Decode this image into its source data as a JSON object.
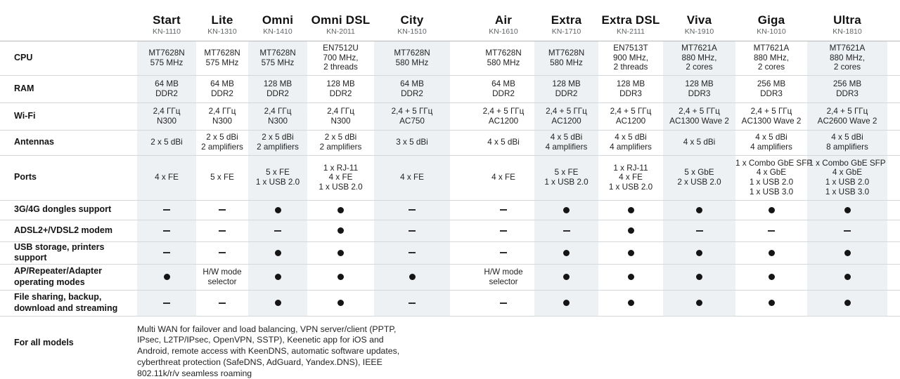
{
  "colors": {
    "stripe": "#eef1f3",
    "row_line": "#d5d8db",
    "header_line": "#b6babd",
    "text": "#1e1e1e"
  },
  "table": {
    "columns": [
      {
        "name": "Start",
        "model": "KN-1110"
      },
      {
        "name": "Lite",
        "model": "KN-1310"
      },
      {
        "name": "Omni",
        "model": "KN-1410"
      },
      {
        "name": "Omni DSL",
        "model": "KN-2011"
      },
      {
        "name": "City",
        "model": "KN-1510"
      },
      {
        "name": "Air",
        "model": "KN-1610"
      },
      {
        "name": "Extra",
        "model": "KN-1710"
      },
      {
        "name": "Extra DSL",
        "model": "KN-2111"
      },
      {
        "name": "Viva",
        "model": "KN-1910"
      },
      {
        "name": "Giga",
        "model": "KN-1010"
      },
      {
        "name": "Ultra",
        "model": "KN-1810"
      }
    ],
    "rows": [
      {
        "label": "CPU",
        "cells": [
          [
            "MT7628N",
            "575 MHz"
          ],
          [
            "MT7628N",
            "575 MHz"
          ],
          [
            "MT7628N",
            "575 MHz"
          ],
          [
            "EN7512U",
            "700 MHz,",
            "2 threads"
          ],
          [
            "MT7628N",
            "580 MHz"
          ],
          [
            "MT7628N",
            "580 MHz"
          ],
          [
            "MT7628N",
            "580 MHz"
          ],
          [
            "EN7513T",
            "900 MHz,",
            "2 threads"
          ],
          [
            "MT7621A",
            "880 MHz,",
            "2 cores"
          ],
          [
            "MT7621A",
            "880 MHz,",
            "2 cores"
          ],
          [
            "MT7621A",
            "880 MHz,",
            "2 cores"
          ]
        ]
      },
      {
        "label": "RAM",
        "cells": [
          [
            "64 MB",
            "DDR2"
          ],
          [
            "64 MB",
            "DDR2"
          ],
          [
            "128 MB",
            "DDR2"
          ],
          [
            "128 MB",
            "DDR2"
          ],
          [
            "64 MB",
            "DDR2"
          ],
          [
            "64 MB",
            "DDR2"
          ],
          [
            "128 MB",
            "DDR2"
          ],
          [
            "128 MB",
            "DDR3"
          ],
          [
            "128 MB",
            "DDR3"
          ],
          [
            "256 MB",
            "DDR3"
          ],
          [
            "256 MB",
            "DDR3"
          ]
        ]
      },
      {
        "label": "Wi-Fi",
        "cells": [
          [
            "2,4 ГГц",
            "N300"
          ],
          [
            "2,4 ГГц",
            "N300"
          ],
          [
            "2,4 ГГц",
            "N300"
          ],
          [
            "2,4 ГГц",
            "N300"
          ],
          [
            "2,4 + 5 ГГц",
            "AC750"
          ],
          [
            "2,4 + 5 ГГц",
            "AC1200"
          ],
          [
            "2,4 + 5 ГГц",
            "AC1200"
          ],
          [
            "2,4 + 5 ГГц",
            "AC1200"
          ],
          [
            "2,4 + 5 ГГц",
            "AC1300 Wave 2"
          ],
          [
            "2,4 + 5 ГГц",
            "AC1300 Wave 2"
          ],
          [
            "2,4 + 5 ГГц",
            "AC2600 Wave 2"
          ]
        ]
      },
      {
        "label": "Antennas",
        "cells": [
          [
            "2 x 5 dBi"
          ],
          [
            "2 x 5 dBi",
            "2 amplifiers"
          ],
          [
            "2 x 5 dBi",
            "2 amplifiers"
          ],
          [
            "2 x 5 dBi",
            "2 amplifiers"
          ],
          [
            "3 x 5 dBi"
          ],
          [
            "4 x 5 dBi"
          ],
          [
            "4 x 5 dBi",
            "4 amplifiers"
          ],
          [
            "4 x 5 dBi",
            "4 amplifiers"
          ],
          [
            "4 x 5 dBi"
          ],
          [
            "4 x 5 dBi",
            "4 amplifiers"
          ],
          [
            "4 x 5 dBi",
            "8 amplifiers"
          ]
        ]
      },
      {
        "label": "Ports",
        "cells": [
          [
            "4 x FE"
          ],
          [
            "5 x FE"
          ],
          [
            "5 x FE",
            "1 x USB 2.0"
          ],
          [
            "1 x RJ-11",
            "4 x FE",
            "1 x USB 2.0"
          ],
          [
            "4 x FE"
          ],
          [
            "4 x FE"
          ],
          [
            "5 x FE",
            "1 x USB 2.0"
          ],
          [
            "1 x RJ-11",
            "4 x FE",
            "1 x USB 2.0"
          ],
          [
            "5 x GbE",
            "2 x USB 2.0"
          ],
          [
            "1 x Combo GbE SFP",
            "4 x GbE",
            "1 x USB 2.0",
            "1 x USB 3.0"
          ],
          [
            "1 x Combo GbE SFP",
            "4 x GbE",
            "1 x USB 2.0",
            "1 x USB 3.0"
          ]
        ]
      },
      {
        "label": "3G/4G dongles support",
        "cells": [
          "no",
          "no",
          "yes",
          "yes",
          "no",
          "no",
          "yes",
          "yes",
          "yes",
          "yes",
          "yes"
        ]
      },
      {
        "label": "ADSL2+/VDSL2 modem",
        "cells": [
          "no",
          "no",
          "no",
          "yes",
          "no",
          "no",
          "no",
          "yes",
          "no",
          "no",
          "no"
        ]
      },
      {
        "label": "USB storage, printers support",
        "cells": [
          "no",
          "no",
          "yes",
          "yes",
          "no",
          "no",
          "yes",
          "yes",
          "yes",
          "yes",
          "yes"
        ]
      },
      {
        "label": "AP/Repeater/Adapter operating modes",
        "cells": [
          "yes",
          [
            "H/W mode",
            "selector"
          ],
          "yes",
          "yes",
          "yes",
          [
            "H/W mode",
            "selector"
          ],
          "yes",
          "yes",
          "yes",
          "yes",
          "yes"
        ]
      },
      {
        "label": "File sharing, backup, download and streaming",
        "cells": [
          "no",
          "no",
          "yes",
          "yes",
          "no",
          "no",
          "yes",
          "yes",
          "yes",
          "yes",
          "yes"
        ]
      }
    ],
    "footer": {
      "label": "For all models",
      "text": "Multi WAN for failover and load balancing, VPN server/client (PPTP, IPsec, L2TP/IPsec, OpenVPN, SSTP), Keenetic app for iOS and Android, remote access with KeenDNS, automatic software updates, cyberthreat protection (SafeDNS, AdGuard, Yandex.DNS), IEEE 802.11k/r/v seamless roaming"
    },
    "symbols": {
      "yes": "●",
      "no": "–"
    }
  }
}
